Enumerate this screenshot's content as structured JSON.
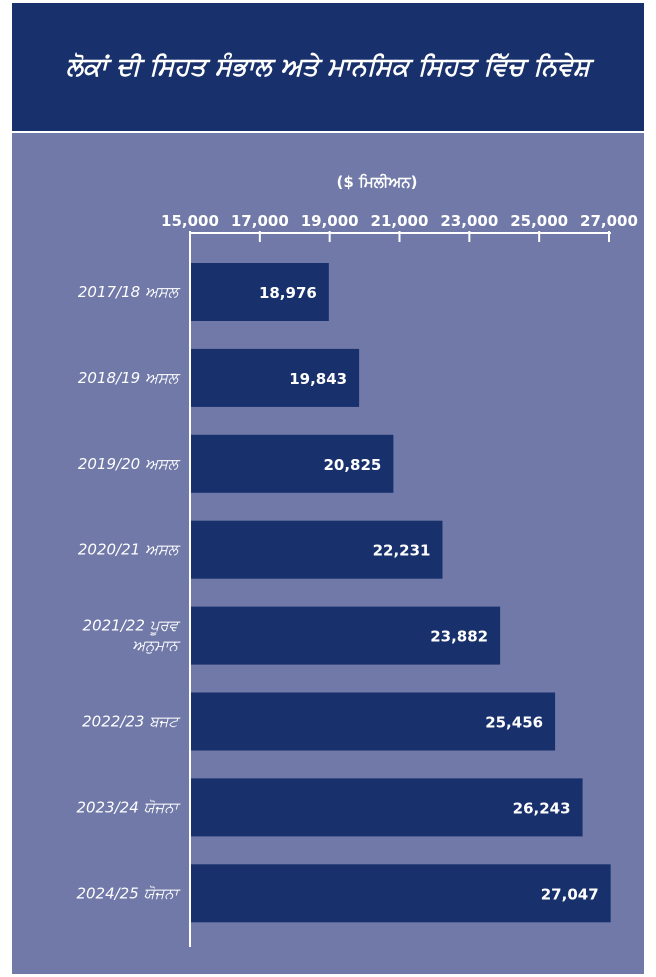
{
  "header": {
    "title": "ਲੋਕਾਂ ਦੀ ਸਿਹਤ ਸੰਭਾਲ ਅਤੇ ਮਾਨਸਿਕ ਸਿਹਤ ਵਿੱਚ ਨਿਵੇਸ਼"
  },
  "colors": {
    "header_bg": "#18306b",
    "plot_bg": "#7079a8",
    "bar": "#18306b",
    "text": "#ffffff"
  },
  "chart_data": {
    "type": "bar",
    "orientation": "horizontal",
    "title": "ਲੋਕਾਂ ਦੀ ਸਿਹਤ ਸੰਭਾਲ ਅਤੇ ਮਾਨਸਿਕ ਸਿਹਤ ਵਿੱਚ ਨਿਵੇਸ਼",
    "unit_label": "($ ਮਿਲੀਅਨ)",
    "axis_position": "top",
    "xlim": [
      15000,
      27000
    ],
    "ticks": [
      15000,
      17000,
      19000,
      21000,
      23000,
      25000,
      27000
    ],
    "tick_labels": [
      "15,000",
      "17,000",
      "19,000",
      "21,000",
      "23,000",
      "25,000",
      "27,000"
    ],
    "categories": [
      [
        "2017/18 ਅਸਲ"
      ],
      [
        "2018/19 ਅਸਲ"
      ],
      [
        "2019/20 ਅਸਲ"
      ],
      [
        "2020/21 ਅਸਲ"
      ],
      [
        "2021/22 ਪੂਰਵ",
        "ਅਨੁਮਾਨ"
      ],
      [
        "2022/23 ਬਜਟ"
      ],
      [
        "2023/24 ਯੋਜਨਾ"
      ],
      [
        "2024/25 ਯੋਜਨਾ"
      ]
    ],
    "values": [
      18976,
      19843,
      20825,
      22231,
      23882,
      25456,
      26243,
      27047
    ],
    "value_labels": [
      "18,976",
      "19,843",
      "20,825",
      "22,231",
      "23,882",
      "25,456",
      "26,243",
      "27,047"
    ],
    "grid": false,
    "legend": "none"
  }
}
